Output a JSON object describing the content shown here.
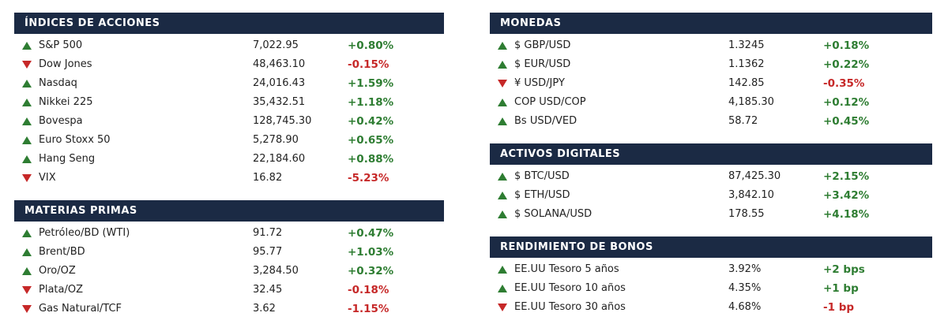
{
  "colors": {
    "header_bg": "#1b2a44",
    "up_green": "#2e7d32",
    "down_red": "#c62828",
    "text": "#222222",
    "background": "#ffffff"
  },
  "columns": [
    {
      "sections": [
        {
          "id": "stock-indices",
          "title": "ÍNDICES DE ACCIONES",
          "rows": [
            {
              "dir": "up",
              "name": "S&P 500",
              "value": "7,022.95",
              "change": "+0.80%"
            },
            {
              "dir": "down",
              "name": "Dow Jones",
              "value": "48,463.10",
              "change": "-0.15%"
            },
            {
              "dir": "up",
              "name": "Nasdaq",
              "value": "24,016.43",
              "change": "+1.59%"
            },
            {
              "dir": "up",
              "name": "Nikkei 225",
              "value": "35,432.51",
              "change": "+1.18%"
            },
            {
              "dir": "up",
              "name": "Bovespa",
              "value": "128,745.30",
              "change": "+0.42%"
            },
            {
              "dir": "up",
              "name": "Euro Stoxx 50",
              "value": "5,278.90",
              "change": "+0.65%"
            },
            {
              "dir": "up",
              "name": "Hang Seng",
              "value": "22,184.60",
              "change": "+0.88%"
            },
            {
              "dir": "down",
              "name": "VIX",
              "value": "16.82",
              "change": "-5.23%"
            }
          ]
        },
        {
          "id": "commodities",
          "title": "MATERIAS PRIMAS",
          "rows": [
            {
              "dir": "up",
              "name": "Petróleo/BD (WTI)",
              "value": "91.72",
              "change": "+0.47%"
            },
            {
              "dir": "up",
              "name": "Brent/BD",
              "value": "95.77",
              "change": "+1.03%"
            },
            {
              "dir": "up",
              "name": "Oro/OZ",
              "value": "3,284.50",
              "change": "+0.32%"
            },
            {
              "dir": "down",
              "name": "Plata/OZ",
              "value": "32.45",
              "change": "-0.18%"
            },
            {
              "dir": "down",
              "name": "Gas Natural/TCF",
              "value": "3.62",
              "change": "-1.15%"
            }
          ]
        }
      ]
    },
    {
      "sections": [
        {
          "id": "currencies",
          "title": "MONEDAS",
          "rows": [
            {
              "dir": "up",
              "name": "$ GBP/USD",
              "value": "1.3245",
              "change": "+0.18%"
            },
            {
              "dir": "up",
              "name": "$ EUR/USD",
              "value": "1.1362",
              "change": "+0.22%"
            },
            {
              "dir": "down",
              "name": "¥ USD/JPY",
              "value": "142.85",
              "change": "-0.35%"
            },
            {
              "dir": "up",
              "name": "COP USD/COP",
              "value": "4,185.30",
              "change": "+0.12%"
            },
            {
              "dir": "up",
              "name": "Bs USD/VED",
              "value": "58.72",
              "change": "+0.45%"
            }
          ]
        },
        {
          "id": "digital-assets",
          "title": "ACTIVOS DIGITALES",
          "rows": [
            {
              "dir": "up",
              "name": "$ BTC/USD",
              "value": "87,425.30",
              "change": "+2.15%"
            },
            {
              "dir": "up",
              "name": "$ ETH/USD",
              "value": "3,842.10",
              "change": "+3.42%"
            },
            {
              "dir": "up",
              "name": "$ SOLANA/USD",
              "value": "178.55",
              "change": "+4.18%"
            }
          ]
        },
        {
          "id": "bond-yields",
          "title": "RENDIMIENTO DE BONOS",
          "rows": [
            {
              "dir": "up",
              "name": "EE.UU Tesoro 5 años",
              "value": "3.92%",
              "change": "+2 bps"
            },
            {
              "dir": "up",
              "name": "EE.UU Tesoro 10 años",
              "value": "4.35%",
              "change": "+1 bp"
            },
            {
              "dir": "down",
              "name": "EE.UU Tesoro 30 años",
              "value": "4.68%",
              "change": "-1 bp"
            }
          ]
        }
      ]
    }
  ]
}
